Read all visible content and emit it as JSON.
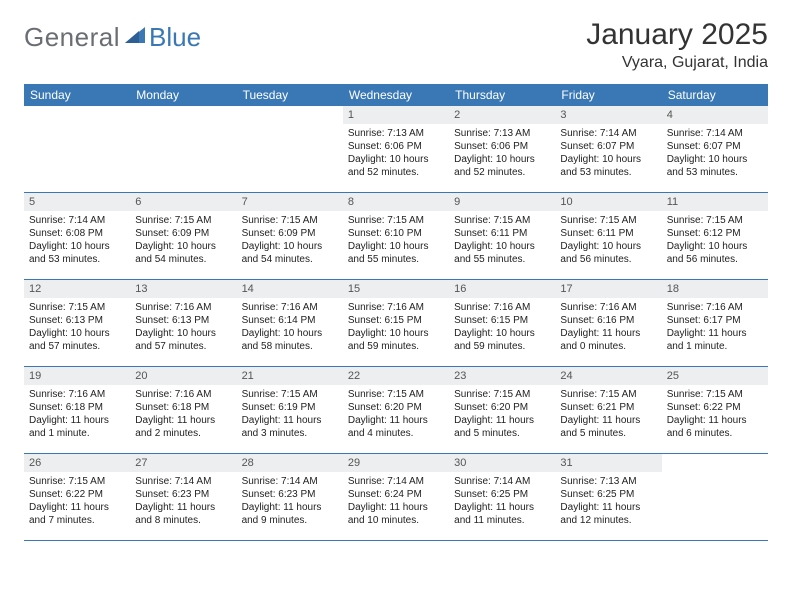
{
  "brand": {
    "part1": "General",
    "part2": "Blue"
  },
  "title": "January 2025",
  "location": "Vyara, Gujarat, India",
  "colors": {
    "header_bg": "#3a78b5",
    "daynum_bg": "#eceeef",
    "text": "#222222",
    "brand_gray": "#6a6e72",
    "brand_blue": "#3a78b5"
  },
  "weekdays": [
    "Sunday",
    "Monday",
    "Tuesday",
    "Wednesday",
    "Thursday",
    "Friday",
    "Saturday"
  ],
  "weeks": [
    [
      {
        "n": "",
        "sr": "",
        "ss": "",
        "dl1": "",
        "dl2": ""
      },
      {
        "n": "",
        "sr": "",
        "ss": "",
        "dl1": "",
        "dl2": ""
      },
      {
        "n": "",
        "sr": "",
        "ss": "",
        "dl1": "",
        "dl2": ""
      },
      {
        "n": "1",
        "sr": "Sunrise: 7:13 AM",
        "ss": "Sunset: 6:06 PM",
        "dl1": "Daylight: 10 hours",
        "dl2": "and 52 minutes."
      },
      {
        "n": "2",
        "sr": "Sunrise: 7:13 AM",
        "ss": "Sunset: 6:06 PM",
        "dl1": "Daylight: 10 hours",
        "dl2": "and 52 minutes."
      },
      {
        "n": "3",
        "sr": "Sunrise: 7:14 AM",
        "ss": "Sunset: 6:07 PM",
        "dl1": "Daylight: 10 hours",
        "dl2": "and 53 minutes."
      },
      {
        "n": "4",
        "sr": "Sunrise: 7:14 AM",
        "ss": "Sunset: 6:07 PM",
        "dl1": "Daylight: 10 hours",
        "dl2": "and 53 minutes."
      }
    ],
    [
      {
        "n": "5",
        "sr": "Sunrise: 7:14 AM",
        "ss": "Sunset: 6:08 PM",
        "dl1": "Daylight: 10 hours",
        "dl2": "and 53 minutes."
      },
      {
        "n": "6",
        "sr": "Sunrise: 7:15 AM",
        "ss": "Sunset: 6:09 PM",
        "dl1": "Daylight: 10 hours",
        "dl2": "and 54 minutes."
      },
      {
        "n": "7",
        "sr": "Sunrise: 7:15 AM",
        "ss": "Sunset: 6:09 PM",
        "dl1": "Daylight: 10 hours",
        "dl2": "and 54 minutes."
      },
      {
        "n": "8",
        "sr": "Sunrise: 7:15 AM",
        "ss": "Sunset: 6:10 PM",
        "dl1": "Daylight: 10 hours",
        "dl2": "and 55 minutes."
      },
      {
        "n": "9",
        "sr": "Sunrise: 7:15 AM",
        "ss": "Sunset: 6:11 PM",
        "dl1": "Daylight: 10 hours",
        "dl2": "and 55 minutes."
      },
      {
        "n": "10",
        "sr": "Sunrise: 7:15 AM",
        "ss": "Sunset: 6:11 PM",
        "dl1": "Daylight: 10 hours",
        "dl2": "and 56 minutes."
      },
      {
        "n": "11",
        "sr": "Sunrise: 7:15 AM",
        "ss": "Sunset: 6:12 PM",
        "dl1": "Daylight: 10 hours",
        "dl2": "and 56 minutes."
      }
    ],
    [
      {
        "n": "12",
        "sr": "Sunrise: 7:15 AM",
        "ss": "Sunset: 6:13 PM",
        "dl1": "Daylight: 10 hours",
        "dl2": "and 57 minutes."
      },
      {
        "n": "13",
        "sr": "Sunrise: 7:16 AM",
        "ss": "Sunset: 6:13 PM",
        "dl1": "Daylight: 10 hours",
        "dl2": "and 57 minutes."
      },
      {
        "n": "14",
        "sr": "Sunrise: 7:16 AM",
        "ss": "Sunset: 6:14 PM",
        "dl1": "Daylight: 10 hours",
        "dl2": "and 58 minutes."
      },
      {
        "n": "15",
        "sr": "Sunrise: 7:16 AM",
        "ss": "Sunset: 6:15 PM",
        "dl1": "Daylight: 10 hours",
        "dl2": "and 59 minutes."
      },
      {
        "n": "16",
        "sr": "Sunrise: 7:16 AM",
        "ss": "Sunset: 6:15 PM",
        "dl1": "Daylight: 10 hours",
        "dl2": "and 59 minutes."
      },
      {
        "n": "17",
        "sr": "Sunrise: 7:16 AM",
        "ss": "Sunset: 6:16 PM",
        "dl1": "Daylight: 11 hours",
        "dl2": "and 0 minutes."
      },
      {
        "n": "18",
        "sr": "Sunrise: 7:16 AM",
        "ss": "Sunset: 6:17 PM",
        "dl1": "Daylight: 11 hours",
        "dl2": "and 1 minute."
      }
    ],
    [
      {
        "n": "19",
        "sr": "Sunrise: 7:16 AM",
        "ss": "Sunset: 6:18 PM",
        "dl1": "Daylight: 11 hours",
        "dl2": "and 1 minute."
      },
      {
        "n": "20",
        "sr": "Sunrise: 7:16 AM",
        "ss": "Sunset: 6:18 PM",
        "dl1": "Daylight: 11 hours",
        "dl2": "and 2 minutes."
      },
      {
        "n": "21",
        "sr": "Sunrise: 7:15 AM",
        "ss": "Sunset: 6:19 PM",
        "dl1": "Daylight: 11 hours",
        "dl2": "and 3 minutes."
      },
      {
        "n": "22",
        "sr": "Sunrise: 7:15 AM",
        "ss": "Sunset: 6:20 PM",
        "dl1": "Daylight: 11 hours",
        "dl2": "and 4 minutes."
      },
      {
        "n": "23",
        "sr": "Sunrise: 7:15 AM",
        "ss": "Sunset: 6:20 PM",
        "dl1": "Daylight: 11 hours",
        "dl2": "and 5 minutes."
      },
      {
        "n": "24",
        "sr": "Sunrise: 7:15 AM",
        "ss": "Sunset: 6:21 PM",
        "dl1": "Daylight: 11 hours",
        "dl2": "and 5 minutes."
      },
      {
        "n": "25",
        "sr": "Sunrise: 7:15 AM",
        "ss": "Sunset: 6:22 PM",
        "dl1": "Daylight: 11 hours",
        "dl2": "and 6 minutes."
      }
    ],
    [
      {
        "n": "26",
        "sr": "Sunrise: 7:15 AM",
        "ss": "Sunset: 6:22 PM",
        "dl1": "Daylight: 11 hours",
        "dl2": "and 7 minutes."
      },
      {
        "n": "27",
        "sr": "Sunrise: 7:14 AM",
        "ss": "Sunset: 6:23 PM",
        "dl1": "Daylight: 11 hours",
        "dl2": "and 8 minutes."
      },
      {
        "n": "28",
        "sr": "Sunrise: 7:14 AM",
        "ss": "Sunset: 6:23 PM",
        "dl1": "Daylight: 11 hours",
        "dl2": "and 9 minutes."
      },
      {
        "n": "29",
        "sr": "Sunrise: 7:14 AM",
        "ss": "Sunset: 6:24 PM",
        "dl1": "Daylight: 11 hours",
        "dl2": "and 10 minutes."
      },
      {
        "n": "30",
        "sr": "Sunrise: 7:14 AM",
        "ss": "Sunset: 6:25 PM",
        "dl1": "Daylight: 11 hours",
        "dl2": "and 11 minutes."
      },
      {
        "n": "31",
        "sr": "Sunrise: 7:13 AM",
        "ss": "Sunset: 6:25 PM",
        "dl1": "Daylight: 11 hours",
        "dl2": "and 12 minutes."
      },
      {
        "n": "",
        "sr": "",
        "ss": "",
        "dl1": "",
        "dl2": ""
      }
    ]
  ]
}
